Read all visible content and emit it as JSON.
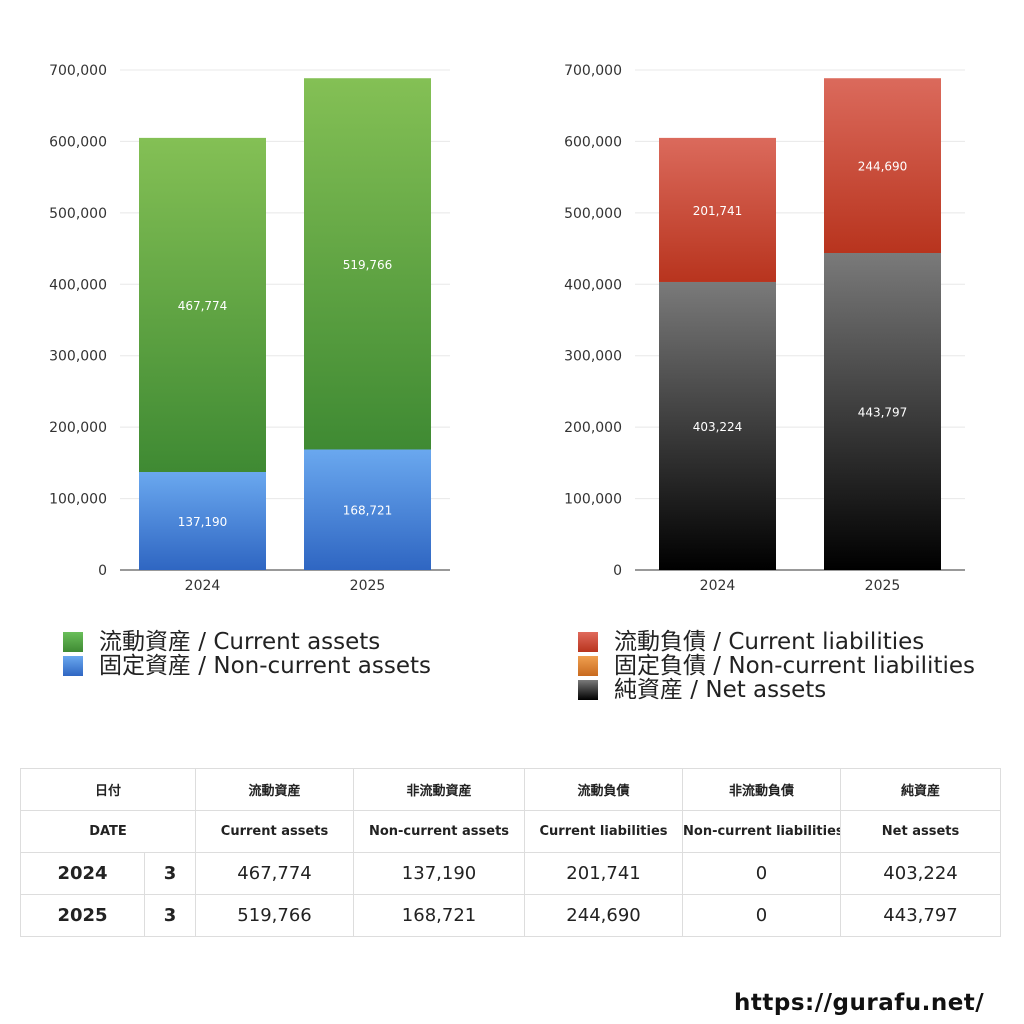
{
  "chart_data": [
    {
      "type": "bar",
      "stacked": true,
      "categories": [
        "2024",
        "2025"
      ],
      "ylim": [
        0,
        700000
      ],
      "yticks": [
        "0",
        "100,000",
        "200,000",
        "300,000",
        "400,000",
        "500,000",
        "600,000",
        "700,000"
      ],
      "grid": true,
      "series": [
        {
          "name": "固定資産 / Non-current assets",
          "values": [
            137190,
            168721
          ],
          "labels": [
            "137,190",
            "168,721"
          ],
          "color": "#4a86e0",
          "color_light": "#6aa8ef",
          "color_dark": "#2f66c2"
        },
        {
          "name": "流動資産 / Current assets",
          "values": [
            467774,
            519766
          ],
          "labels": [
            "467,774",
            "519,766"
          ],
          "color": "#5aaa46",
          "color_light": "#84c055",
          "color_dark": "#3f8a33"
        }
      ],
      "legend": "bottom"
    },
    {
      "type": "bar",
      "stacked": true,
      "categories": [
        "2024",
        "2025"
      ],
      "ylim": [
        0,
        700000
      ],
      "yticks": [
        "0",
        "100,000",
        "200,000",
        "300,000",
        "400,000",
        "500,000",
        "600,000",
        "700,000"
      ],
      "grid": true,
      "series": [
        {
          "name": "純資産 / Net assets",
          "values": [
            403224,
            443797
          ],
          "labels": [
            "403,224",
            "443,797"
          ],
          "color": "#333333",
          "color_light": "#7a7a7a",
          "color_dark": "#000000"
        },
        {
          "name": "固定負債 / Non-current liabilities",
          "values": [
            0,
            0
          ],
          "labels": [
            "",
            ""
          ],
          "color": "#e0883a",
          "color_light": "#ef9f50",
          "color_dark": "#c86a1f"
        },
        {
          "name": "流動負債 / Current liabilities",
          "values": [
            201741,
            244690
          ],
          "labels": [
            "201,741",
            "244,690"
          ],
          "color": "#d04a3a",
          "color_light": "#db6a5c",
          "color_dark": "#b8341e"
        }
      ],
      "legend": "bottom"
    }
  ],
  "legend_left": [
    {
      "label": "流動資産 / Current assets",
      "color_light": "#6abf5a",
      "color_dark": "#3f8a33"
    },
    {
      "label": "固定資産 / Non-current assets",
      "color_light": "#6aa8ef",
      "color_dark": "#2f66c2"
    }
  ],
  "legend_right": [
    {
      "label": "流動負債 / Current liabilities",
      "color_light": "#e06a5c",
      "color_dark": "#b8341e"
    },
    {
      "label": "固定負債 / Non-current liabilities",
      "color_light": "#f0a050",
      "color_dark": "#c86a1f"
    },
    {
      "label": "純資産 / Net assets",
      "color_light": "#7a7a7a",
      "color_dark": "#000000"
    }
  ],
  "table": {
    "header_ja": {
      "date": "日付",
      "current_assets": "流動資産",
      "noncurrent_assets": "非流動資産",
      "current_liabilities": "流動負債",
      "noncurrent_liabilities": "非流動負債",
      "net_assets": "純資産"
    },
    "header_en": {
      "date": "DATE",
      "current_assets": "Current assets",
      "noncurrent_assets": "Non-current assets",
      "current_liabilities": "Current liabilities",
      "noncurrent_liabilities": "Non-current liabilities",
      "net_assets": "Net assets"
    },
    "rows": [
      {
        "year": "2024",
        "month": "3",
        "current_assets": "467,774",
        "noncurrent_assets": "137,190",
        "current_liabilities": "201,741",
        "noncurrent_liabilities": "0",
        "net_assets": "403,224"
      },
      {
        "year": "2025",
        "month": "3",
        "current_assets": "519,766",
        "noncurrent_assets": "168,721",
        "current_liabilities": "244,690",
        "noncurrent_liabilities": "0",
        "net_assets": "443,797"
      }
    ]
  },
  "credit": "https://gurafu.net/"
}
